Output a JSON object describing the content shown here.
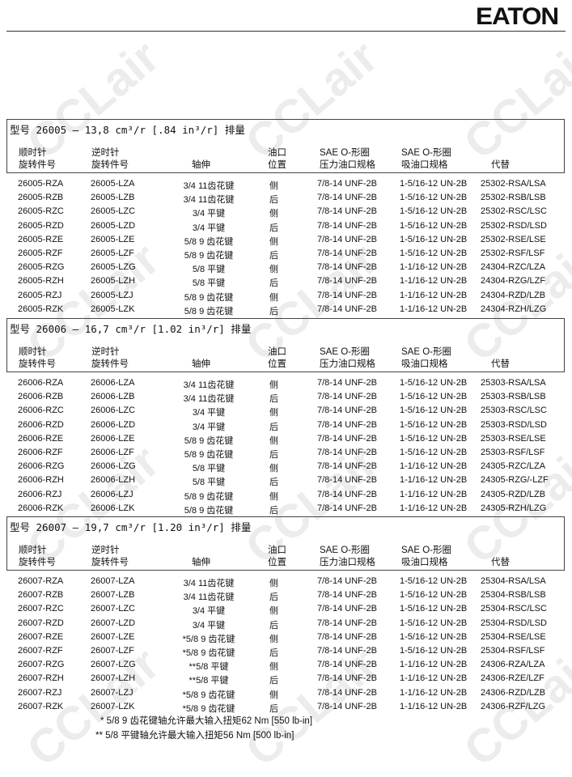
{
  "brand": {
    "logo": "EATON"
  },
  "watermark": "CCLair",
  "headers": {
    "cw": [
      "顺时针",
      "旋转件号"
    ],
    "ccw": [
      "逆时针",
      "旋转件号"
    ],
    "shaft": "轴伸",
    "port": [
      "油口",
      "位置"
    ],
    "pressure": [
      "SAE O-形圈",
      "压力油口规格"
    ],
    "inlet": [
      "SAE O-形圈",
      "吸油口规格"
    ],
    "replace": "代替"
  },
  "sections": [
    {
      "title": "型号 26005 — 13,8 cm³/r [.84 in³/r] 排量",
      "rows": [
        [
          "26005-RZA",
          "26005-LZA",
          "3/4 11齿花键",
          "侧",
          "7/8-14 UNF-2B",
          "1-5/16-12 UN-2B",
          "25302-RSA/LSA"
        ],
        [
          "26005-RZB",
          "26005-LZB",
          "3/4 11齿花键",
          "后",
          "7/8-14 UNF-2B",
          "1-5/16-12 UN-2B",
          "25302-RSB/LSB"
        ],
        [
          "26005-RZC",
          "26005-LZC",
          "3/4 平键",
          "侧",
          "7/8-14 UNF-2B",
          "1-5/16-12 UN-2B",
          "25302-RSC/LSC"
        ],
        [
          "26005-RZD",
          "26005-LZD",
          "3/4 平键",
          "后",
          "7/8-14 UNF-2B",
          "1-5/16-12 UN-2B",
          "25302-RSD/LSD"
        ],
        [
          "26005-RZE",
          "26005-LZE",
          "5/8 9 齿花键",
          "侧",
          "7/8-14 UNF-2B",
          "1-5/16-12 UN-2B",
          "25302-RSE/LSE"
        ],
        [
          "26005-RZF",
          "26005-LZF",
          "5/8 9 齿花键",
          "后",
          "7/8-14 UNF-2B",
          "1-5/16-12 UN-2B",
          "25302-RSF/LSF"
        ],
        [
          "26005-RZG",
          "26005-LZG",
          "5/8 平键",
          "侧",
          "7/8-14 UNF-2B",
          "1-1/16-12 UN-2B",
          "24304-RZC/LZA"
        ],
        [
          "26005-RZH",
          "26005-LZH",
          "5/8 平键",
          "后",
          "7/8-14 UNF-2B",
          "1-1/16-12 UN-2B",
          "24304-RZG/LZF"
        ],
        [
          "26005-RZJ",
          "26005-LZJ",
          "5/8 9 齿花键",
          "侧",
          "7/8-14 UNF-2B",
          "1-1/16-12 UN-2B",
          "24304-RZD/LZB"
        ],
        [
          "26005-RZK",
          "26005-LZK",
          "5/8 9 齿花键",
          "后",
          "7/8-14 UNF-2B",
          "1-1/16-12 UN-2B",
          "24304-RZH/LZG"
        ]
      ]
    },
    {
      "title": "型号 26006 — 16,7 cm³/r [1.02 in³/r] 排量",
      "rows": [
        [
          "26006-RZA",
          "26006-LZA",
          "3/4 11齿花键",
          "侧",
          "7/8-14 UNF-2B",
          "1-5/16-12 UN-2B",
          "25303-RSA/LSA"
        ],
        [
          "26006-RZB",
          "26006-LZB",
          "3/4 11齿花键",
          "后",
          "7/8-14 UNF-2B",
          "1-5/16-12 UN-2B",
          "25303-RSB/LSB"
        ],
        [
          "26006-RZC",
          "26006-LZC",
          "3/4 平键",
          "侧",
          "7/8-14 UNF-2B",
          "1-5/16-12 UN-2B",
          "25303-RSC/LSC"
        ],
        [
          "26006-RZD",
          "26006-LZD",
          "3/4 平键",
          "后",
          "7/8-14 UNF-2B",
          "1-5/16-12 UN-2B",
          "25303-RSD/LSD"
        ],
        [
          "26006-RZE",
          "26006-LZE",
          "5/8 9 齿花键",
          "侧",
          "7/8-14 UNF-2B",
          "1-5/16-12 UN-2B",
          "25303-RSE/LSE"
        ],
        [
          "26006-RZF",
          "26006-LZF",
          "5/8 9 齿花键",
          "后",
          "7/8-14 UNF-2B",
          "1-5/16-12 UN-2B",
          "25303-RSF/LSF"
        ],
        [
          "26006-RZG",
          "26006-LZG",
          "5/8 平键",
          "侧",
          "7/8-14 UNF-2B",
          "1-1/16-12 UN-2B",
          "24305-RZC/LZA"
        ],
        [
          "26006-RZH",
          "26006-LZH",
          "5/8 平键",
          "后",
          "7/8-14 UNF-2B",
          "1-1/16-12 UN-2B",
          "24305-RZG/-LZF"
        ],
        [
          "26006-RZJ",
          "26006-LZJ",
          "5/8 9 齿花键",
          "侧",
          "7/8-14 UNF-2B",
          "1-1/16-12 UN-2B",
          "24305-RZD/LZB"
        ],
        [
          "26006-RZK",
          "26006-LZK",
          "5/8 9 齿花键",
          "后",
          "7/8-14 UNF-2B",
          "1-1/16-12 UN-2B",
          "24305-RZH/LZG"
        ]
      ]
    },
    {
      "title": "型号 26007 — 19,7 cm³/r [1.20 in³/r] 排量",
      "rows": [
        [
          "26007-RZA",
          "26007-LZA",
          "3/4 11齿花键",
          "侧",
          "7/8-14 UNF-2B",
          "1-5/16-12 UN-2B",
          "25304-RSA/LSA"
        ],
        [
          "26007-RZB",
          "26007-LZB",
          "3/4 11齿花键",
          "后",
          "7/8-14 UNF-2B",
          "1-5/16-12 UN-2B",
          "25304-RSB/LSB"
        ],
        [
          "26007-RZC",
          "26007-LZC",
          "3/4 平键",
          "侧",
          "7/8-14 UNF-2B",
          "1-5/16-12 UN-2B",
          "25304-RSC/LSC"
        ],
        [
          "26007-RZD",
          "26007-LZD",
          "3/4 平键",
          "后",
          "7/8-14 UNF-2B",
          "1-5/16-12 UN-2B",
          "25304-RSD/LSD"
        ],
        [
          "26007-RZE",
          "26007-LZE",
          "*5/8 9 齿花键",
          "侧",
          "7/8-14 UNF-2B",
          "1-5/16-12 UN-2B",
          "25304-RSE/LSE"
        ],
        [
          "26007-RZF",
          "26007-LZF",
          "*5/8 9 齿花键",
          "后",
          "7/8-14 UNF-2B",
          "1-5/16-12 UN-2B",
          "25304-RSF/LSF"
        ],
        [
          "26007-RZG",
          "26007-LZG",
          "**5/8 平键",
          "侧",
          "7/8-14 UNF-2B",
          "1-1/16-12 UN-2B",
          "24306-RZA/LZA"
        ],
        [
          "26007-RZH",
          "26007-LZH",
          "**5/8 平键",
          "后",
          "7/8-14 UNF-2B",
          "1-1/16-12 UN-2B",
          "24306-RZE/LZF"
        ],
        [
          "26007-RZJ",
          "26007-LZJ",
          "*5/8 9 齿花键",
          "侧",
          "7/8-14 UNF-2B",
          "1-1/16-12 UN-2B",
          "24306-RZD/LZB"
        ],
        [
          "26007-RZK",
          "26007-LZK",
          "*5/8 9 齿花键",
          "后",
          "7/8-14 UNF-2B",
          "1-1/16-12 UN-2B",
          "24306-RZF/LZG"
        ]
      ]
    }
  ],
  "footnotes": [
    "* 5/8 9 齿花键轴允许最大输入扭矩62 Nm [550 lb-in]",
    "** 5/8  平键轴允许最大输入扭矩56 Nm [500 lb-in]"
  ]
}
